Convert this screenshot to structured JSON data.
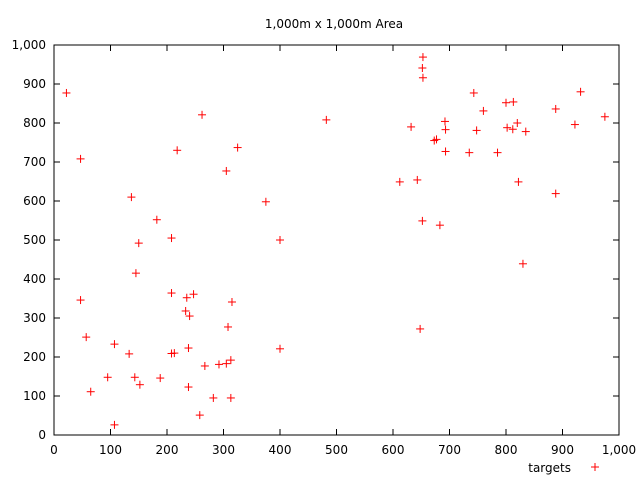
{
  "chart_data": {
    "type": "scatter",
    "title": "1,000m x 1,000m Area",
    "xlabel": "",
    "ylabel": "",
    "xlim": [
      0,
      1000
    ],
    "ylim": [
      0,
      1000
    ],
    "xticks": [
      0,
      100,
      200,
      300,
      400,
      500,
      600,
      700,
      800,
      900,
      1000
    ],
    "yticks": [
      0,
      100,
      200,
      300,
      400,
      500,
      600,
      700,
      800,
      900,
      1000
    ],
    "xtick_labels": [
      "0",
      "100",
      "200",
      "300",
      "400",
      "500",
      "600",
      "700",
      "800",
      "900",
      "1,000"
    ],
    "ytick_labels": [
      "0",
      "100",
      "200",
      "300",
      "400",
      "500",
      "600",
      "700",
      "800",
      "900",
      "1,000"
    ],
    "grid": false,
    "legend_position": "bottom-right",
    "marker": "+",
    "series": [
      {
        "name": "targets",
        "color": "#ff0000",
        "points": [
          [
            22,
            877
          ],
          [
            47,
            708
          ],
          [
            47,
            346
          ],
          [
            57,
            251
          ],
          [
            65,
            111
          ],
          [
            95,
            148
          ],
          [
            107,
            233
          ],
          [
            107,
            26
          ],
          [
            133,
            208
          ],
          [
            137,
            610
          ],
          [
            143,
            148
          ],
          [
            145,
            415
          ],
          [
            150,
            492
          ],
          [
            152,
            129
          ],
          [
            182,
            552
          ],
          [
            188,
            146
          ],
          [
            208,
            505
          ],
          [
            208,
            364
          ],
          [
            208,
            209
          ],
          [
            213,
            210
          ],
          [
            218,
            730
          ],
          [
            233,
            318
          ],
          [
            235,
            352
          ],
          [
            238,
            223
          ],
          [
            238,
            123
          ],
          [
            240,
            305
          ],
          [
            247,
            361
          ],
          [
            258,
            51
          ],
          [
            262,
            821
          ],
          [
            267,
            177
          ],
          [
            282,
            95
          ],
          [
            292,
            181
          ],
          [
            305,
            183
          ],
          [
            305,
            677
          ],
          [
            308,
            277
          ],
          [
            313,
            95
          ],
          [
            313,
            192
          ],
          [
            315,
            341
          ],
          [
            325,
            737
          ],
          [
            375,
            598
          ],
          [
            400,
            221
          ],
          [
            400,
            500
          ],
          [
            482,
            808
          ],
          [
            612,
            649
          ],
          [
            632,
            790
          ],
          [
            643,
            654
          ],
          [
            648,
            272
          ],
          [
            652,
            549
          ],
          [
            652,
            941
          ],
          [
            653,
            969
          ],
          [
            653,
            916
          ],
          [
            673,
            755
          ],
          [
            677,
            758
          ],
          [
            683,
            538
          ],
          [
            692,
            804
          ],
          [
            693,
            783
          ],
          [
            693,
            727
          ],
          [
            735,
            724
          ],
          [
            743,
            877
          ],
          [
            748,
            781
          ],
          [
            760,
            831
          ],
          [
            785,
            724
          ],
          [
            800,
            852
          ],
          [
            802,
            788
          ],
          [
            812,
            784
          ],
          [
            813,
            854
          ],
          [
            820,
            800
          ],
          [
            822,
            649
          ],
          [
            830,
            439
          ],
          [
            835,
            778
          ],
          [
            888,
            836
          ],
          [
            888,
            619
          ],
          [
            922,
            796
          ],
          [
            932,
            880
          ],
          [
            975,
            816
          ]
        ]
      }
    ]
  }
}
